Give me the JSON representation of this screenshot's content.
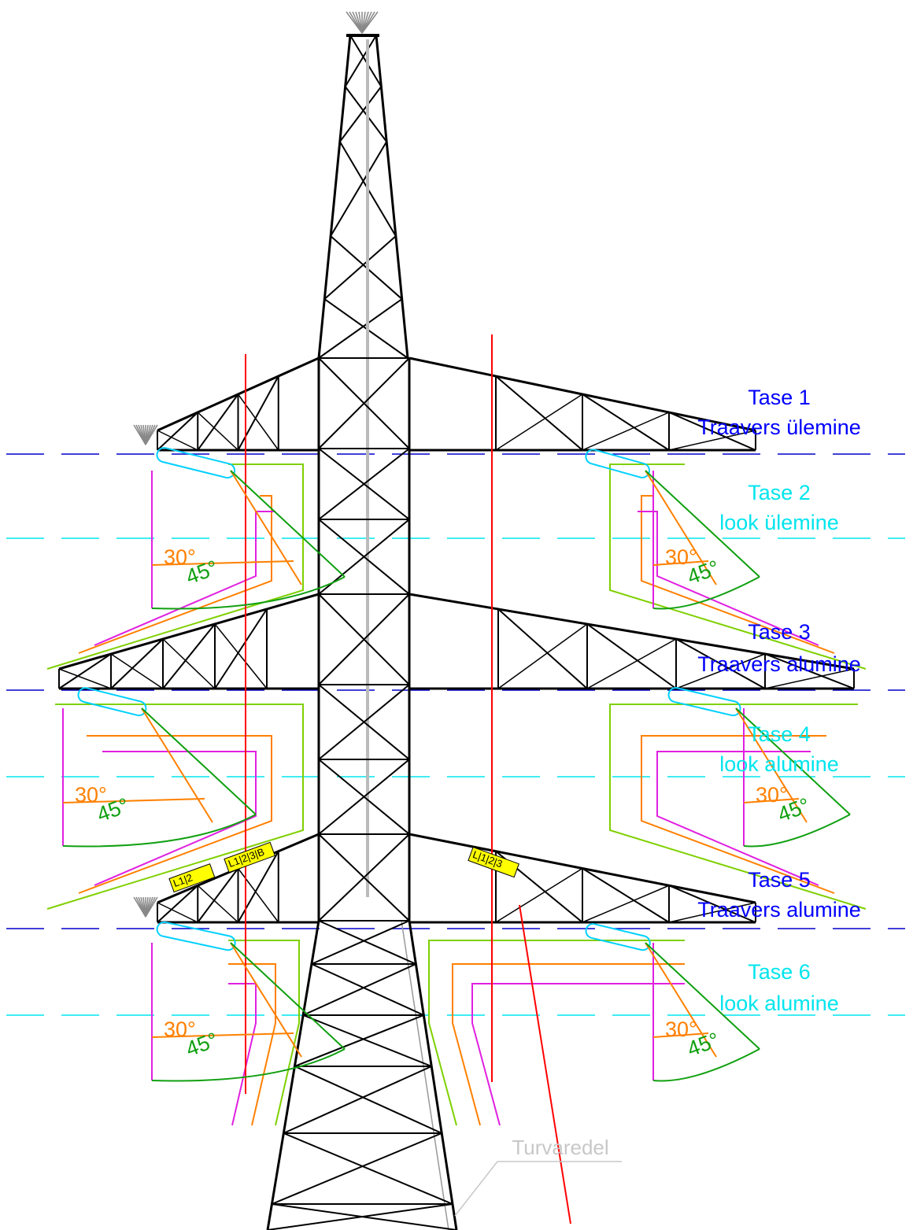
{
  "levels": [
    {
      "title": "Tase 1",
      "subtitle": "Traavers ülemine"
    },
    {
      "title": "Tase 2",
      "subtitle": "look ülemine"
    },
    {
      "title": "Tase 3",
      "subtitle": "Traavers alumine"
    },
    {
      "title": "Tase 4",
      "subtitle": "look alumine"
    },
    {
      "title": "Tase 5",
      "subtitle": "Traavers alumine"
    },
    {
      "title": "Tase 6",
      "subtitle": "look alumine"
    }
  ],
  "swing_angles": [
    {
      "small": "30°",
      "large": "45°"
    },
    {
      "small": "30°",
      "large": "45°"
    },
    {
      "small": "30°",
      "large": "45°"
    },
    {
      "small": "30°",
      "large": "45°"
    },
    {
      "small": "30°",
      "large": "45°"
    },
    {
      "small": "30°",
      "large": "45°"
    }
  ],
  "phase_tags": [
    "L1|2",
    "L1|2|3|B",
    "L|1|2|3"
  ],
  "ladder_label": "Turvaredel"
}
